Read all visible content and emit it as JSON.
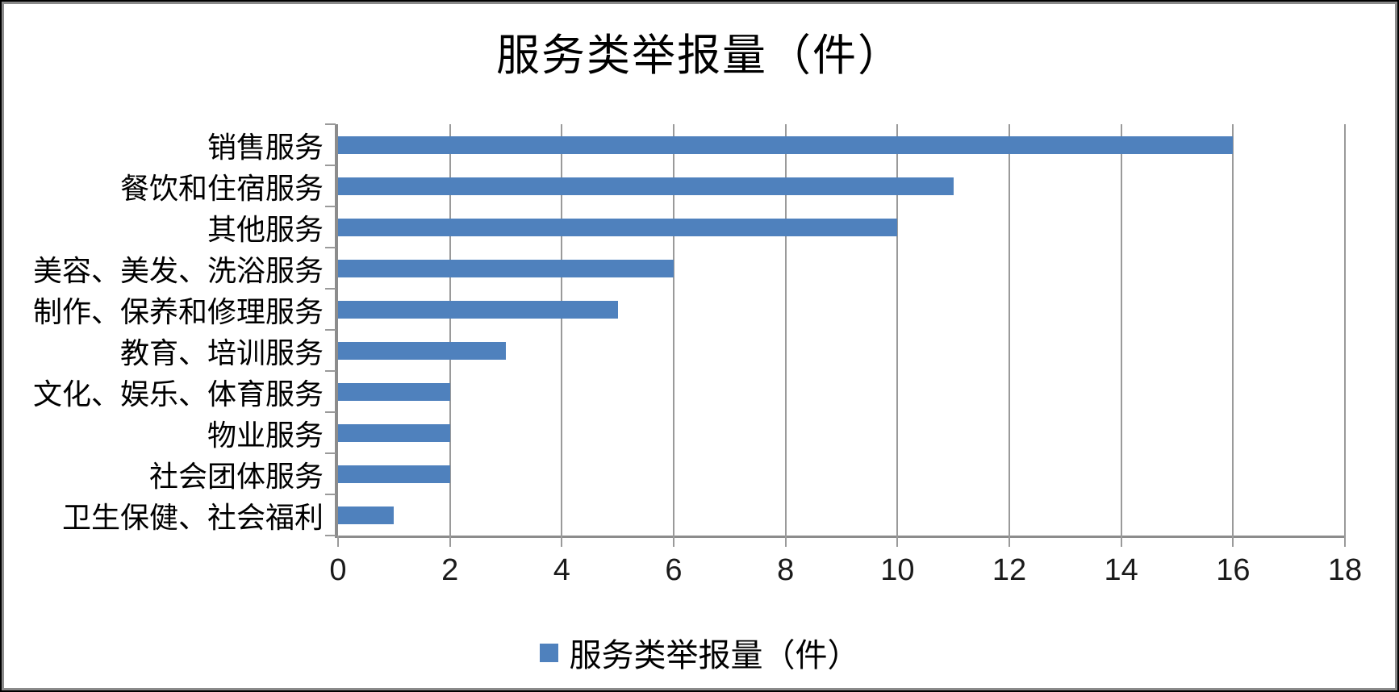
{
  "chart_data": {
    "type": "bar",
    "orientation": "horizontal",
    "title": "服务类举报量（件）",
    "categories": [
      "销售服务",
      "餐饮和住宿服务",
      "其他服务",
      "美容、美发、洗浴服务",
      "制作、保养和修理服务",
      "教育、培训服务",
      "文化、娱乐、体育服务",
      "物业服务",
      "社会团体服务",
      "卫生保健、社会福利"
    ],
    "values": [
      16,
      11,
      10,
      6,
      5,
      3,
      2,
      2,
      2,
      1
    ],
    "xlim": [
      0,
      18
    ],
    "x_ticks": [
      0,
      2,
      4,
      6,
      8,
      10,
      12,
      14,
      16,
      18
    ],
    "grid": true,
    "legend": {
      "label": "服务类举报量（件）",
      "position": "bottom",
      "swatch_icon": "square-swatch"
    },
    "colors": {
      "bar": "#4F81BD",
      "gridline": "#9a9a9a",
      "axis": "#8c8c8c",
      "text": "#000000",
      "background": "#ffffff"
    }
  }
}
